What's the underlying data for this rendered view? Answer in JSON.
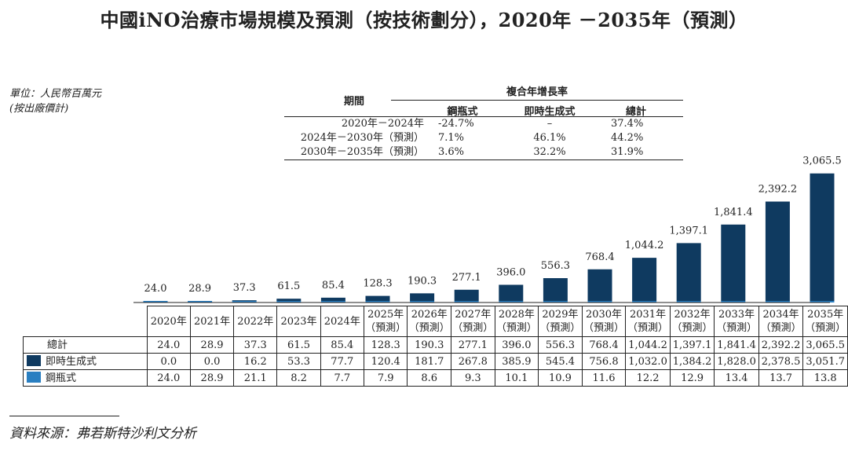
{
  "title": "中國iNO治療市場規模及預測（按技術劃分），2020年 －2035年（預測）",
  "unit_line1": "單位：人民幣百萬元",
  "unit_line2": "(按出廠價計)",
  "cagr_table": {
    "period_header": "期間",
    "cagr_header": "複合年增長率",
    "col_cylinder": "鋼瓶式",
    "col_instant": "即時生成式",
    "col_total": "總計",
    "rows": [
      {
        "period": "2020年－2024年",
        "cylinder": "-24.7%",
        "instant": "–",
        "total": "37.4%"
      },
      {
        "period": "2024年－2030年（預測）",
        "cylinder": "7.1%",
        "instant": "46.1%",
        "total": "44.2%"
      },
      {
        "period": "2030年－2035年（預測）",
        "cylinder": "3.6%",
        "instant": "32.2%",
        "total": "31.9%"
      }
    ]
  },
  "colors": {
    "instant": "#0f3a60",
    "cylinder": "#2a7fc1"
  },
  "chart_data": {
    "type": "bar",
    "stacked": true,
    "categories": [
      "2020年",
      "2021年",
      "2022年",
      "2023年",
      "2024年",
      "2025年\n（預測）",
      "2026年\n（預測）",
      "2027年\n（預測）",
      "2028年\n（預測）",
      "2029年\n（預測）",
      "2030年\n（預測）",
      "2031年\n（預測）",
      "2032年\n（預測）",
      "2033年\n（預測）",
      "2034年\n（預測）",
      "2035年\n（預測）"
    ],
    "totals_label": "總計",
    "totals": [
      "24.0",
      "28.9",
      "37.3",
      "61.5",
      "85.4",
      "128.3",
      "190.3",
      "277.1",
      "396.0",
      "556.3",
      "768.4",
      "1,044.2",
      "1,397.1",
      "1,841.4",
      "2,392.2",
      "3,065.5"
    ],
    "series": [
      {
        "name": "即時生成式",
        "values": [
          0.0,
          0.0,
          16.2,
          53.3,
          77.7,
          120.4,
          181.7,
          267.8,
          385.9,
          545.4,
          756.8,
          1032.0,
          1384.2,
          1828.0,
          2378.5,
          3051.7
        ],
        "labels": [
          "0.0",
          "0.0",
          "16.2",
          "53.3",
          "77.7",
          "120.4",
          "181.7",
          "267.8",
          "385.9",
          "545.4",
          "756.8",
          "1,032.0",
          "1,384.2",
          "1,828.0",
          "2,378.5",
          "3,051.7"
        ]
      },
      {
        "name": "鋼瓶式",
        "values": [
          24.0,
          28.9,
          21.1,
          8.2,
          7.7,
          7.9,
          8.6,
          9.3,
          10.1,
          10.9,
          11.6,
          12.2,
          12.9,
          13.4,
          13.7,
          13.8
        ],
        "labels": [
          "24.0",
          "28.9",
          "21.1",
          "8.2",
          "7.7",
          "7.9",
          "8.6",
          "9.3",
          "10.1",
          "10.9",
          "11.6",
          "12.2",
          "12.9",
          "13.4",
          "13.7",
          "13.8"
        ]
      }
    ],
    "ylim": [
      0,
      3065.5
    ]
  },
  "source": "資料來源：弗若斯特沙利文分析"
}
